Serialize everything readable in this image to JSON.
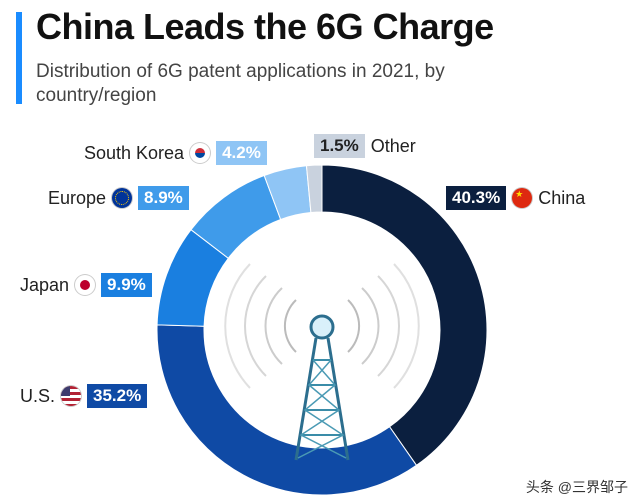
{
  "header": {
    "title": "China Leads the 6G Charge",
    "subtitle": "Distribution of 6G patent applications in 2021, by country/region"
  },
  "chart_data": {
    "type": "pie",
    "title": "China Leads the 6G Charge",
    "subtitle": "Distribution of 6G patent applications in 2021, by country/region",
    "categories": [
      "China",
      "U.S.",
      "Japan",
      "Europe",
      "South Korea",
      "Other"
    ],
    "values": [
      40.3,
      35.2,
      9.9,
      8.9,
      4.2,
      1.5
    ],
    "value_labels": [
      "40.3%",
      "35.2%",
      "9.9%",
      "8.9%",
      "4.2%",
      "1.5%"
    ],
    "colors": [
      "#0b1f3f",
      "#0f4aa5",
      "#1a7fe0",
      "#3f9bea",
      "#8fc5f5",
      "#c9d2de"
    ],
    "donut": true
  },
  "watermark": "头条 @三界邹子"
}
